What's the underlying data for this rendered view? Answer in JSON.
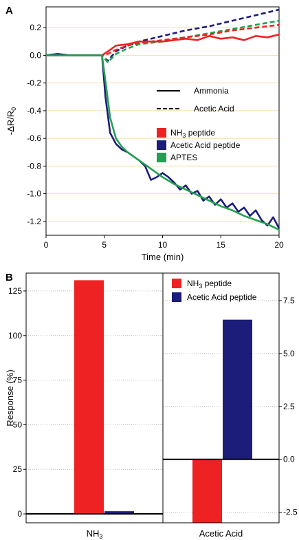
{
  "chart_data": [
    {
      "panel": "A",
      "type": "line",
      "xlabel": "Time (min)",
      "ylabel_parts": [
        "-ΔR/R",
        "0"
      ],
      "xlim": [
        0,
        20
      ],
      "ylim": [
        -1.3,
        0.35
      ],
      "xticks": [
        0,
        5,
        10,
        15,
        20
      ],
      "yticks": [
        0.2,
        0.0,
        -0.2,
        -0.4,
        -0.6,
        -0.8,
        -1.0,
        -1.2
      ],
      "ytick_labels": [
        "0.2",
        "0.0",
        "-0.2",
        "-0.4",
        "-0.6",
        "-0.8",
        "-1.0",
        "-1.2"
      ],
      "grid": true,
      "colors": {
        "nh3": "#ee2222",
        "acetic": "#1c1c7a",
        "aptes": "#22a050"
      },
      "style_legend": [
        {
          "label": "Ammonia",
          "dash": "solid"
        },
        {
          "label": "Acetic Acid",
          "dash": "dashed"
        }
      ],
      "color_legend": [
        {
          "label": "NH",
          "sub": "3",
          "label_after": " peptide",
          "color": "#ee2222"
        },
        {
          "label": "Acetic Acid peptide",
          "sub": "",
          "label_after": "",
          "color": "#1c1c7a"
        },
        {
          "label": "APTES",
          "sub": "",
          "label_after": "",
          "color": "#22a050"
        }
      ],
      "series": [
        {
          "gas": "Acetic Acid",
          "material": "Acetic Acid peptide",
          "dash": "dashed",
          "color": "#1c1c7a",
          "x": [
            0,
            2,
            4,
            4.8,
            5.3,
            6,
            7,
            8,
            10,
            12,
            14,
            16,
            18,
            20
          ],
          "y": [
            0,
            0,
            0,
            0,
            -0.04,
            0.03,
            0.07,
            0.1,
            0.14,
            0.18,
            0.21,
            0.25,
            0.29,
            0.33
          ]
        },
        {
          "gas": "Acetic Acid",
          "material": "APTES",
          "dash": "dashed",
          "color": "#22a050",
          "x": [
            0,
            2,
            4,
            4.8,
            5.3,
            6,
            7,
            8,
            10,
            12,
            14,
            16,
            18,
            20
          ],
          "y": [
            0,
            0,
            0,
            0,
            -0.05,
            0.01,
            0.05,
            0.08,
            0.1,
            0.13,
            0.16,
            0.19,
            0.22,
            0.25
          ]
        },
        {
          "gas": "Acetic Acid",
          "material": "NH3 peptide",
          "dash": "dashed",
          "color": "#ee2222",
          "x": [
            0,
            2,
            4,
            4.8,
            5.3,
            6,
            7,
            8,
            10,
            12,
            14,
            16,
            18,
            20
          ],
          "y": [
            0,
            0,
            0,
            0,
            0.01,
            0.04,
            0.07,
            0.09,
            0.11,
            0.13,
            0.15,
            0.18,
            0.2,
            0.22
          ]
        },
        {
          "gas": "Ammonia",
          "material": "NH3 peptide",
          "dash": "solid",
          "color": "#ee2222",
          "x": [
            0,
            2,
            4,
            4.8,
            5.5,
            6,
            7,
            8,
            9,
            10,
            11,
            12,
            13,
            14,
            15,
            16,
            17,
            18,
            19,
            20
          ],
          "y": [
            0,
            0,
            0,
            0,
            0.04,
            0.07,
            0.08,
            0.1,
            0.1,
            0.1,
            0.11,
            0.12,
            0.11,
            0.14,
            0.12,
            0.13,
            0.11,
            0.14,
            0.13,
            0.15
          ]
        },
        {
          "gas": "Ammonia",
          "material": "Acetic Acid peptide",
          "dash": "solid",
          "color": "#1c1c7a",
          "x": [
            0,
            1,
            2,
            3,
            4,
            4.8,
            5.1,
            5.5,
            6,
            6.5,
            7,
            7.5,
            8,
            8.5,
            9,
            9.5,
            10,
            10.5,
            11,
            11.5,
            12,
            12.5,
            13,
            13.5,
            14,
            14.5,
            15,
            15.5,
            16,
            16.5,
            17,
            17.5,
            18,
            18.5,
            19,
            19.5,
            20
          ],
          "y": [
            0,
            0.01,
            0,
            0,
            0,
            0,
            -0.3,
            -0.56,
            -0.64,
            -0.68,
            -0.7,
            -0.73,
            -0.76,
            -0.8,
            -0.9,
            -0.88,
            -0.85,
            -0.88,
            -0.92,
            -0.97,
            -0.94,
            -1.0,
            -0.98,
            -1.05,
            -1.02,
            -1.08,
            -1.04,
            -1.1,
            -1.07,
            -1.13,
            -1.1,
            -1.16,
            -1.12,
            -1.19,
            -1.23,
            -1.17,
            -1.25
          ]
        },
        {
          "gas": "Ammonia",
          "material": "APTES",
          "dash": "solid",
          "color": "#22a050",
          "x": [
            0,
            1,
            2,
            3,
            4,
            4.8,
            5.2,
            5.5,
            6,
            6.5,
            7,
            8,
            9,
            10,
            11,
            12,
            13,
            14,
            15,
            16,
            17,
            18,
            19,
            20
          ],
          "y": [
            0,
            0,
            0,
            0,
            0,
            0,
            -0.25,
            -0.45,
            -0.6,
            -0.66,
            -0.7,
            -0.76,
            -0.82,
            -0.88,
            -0.93,
            -0.97,
            -1.01,
            -1.05,
            -1.09,
            -1.12,
            -1.16,
            -1.19,
            -1.22,
            -1.26
          ]
        }
      ]
    },
    {
      "panel": "B",
      "type": "bar",
      "ylabel": "Response (%)",
      "grid": true,
      "legend": [
        {
          "label": "NH",
          "sub": "3",
          "label_after": " peptide",
          "color": "#ee2222"
        },
        {
          "label": "Acetic Acid peptide",
          "sub": "",
          "label_after": "",
          "color": "#1c1c7a"
        }
      ],
      "groups": [
        {
          "category": "NH",
          "category_sub": "3",
          "axis": "left",
          "ylim": [
            -5,
            135
          ],
          "yticks": [
            0,
            25,
            50,
            75,
            100,
            125
          ],
          "ytick_labels": [
            "0",
            "25",
            "50",
            "75",
            "100",
            "125"
          ],
          "values": [
            {
              "series": "NH3 peptide",
              "value": 131,
              "color": "#ee2222"
            },
            {
              "series": "Acetic Acid peptide",
              "value": 1.5,
              "color": "#1c1c7a"
            }
          ]
        },
        {
          "category": "Acetic Acid",
          "category_sub": "",
          "axis": "right",
          "ylim": [
            -3.0,
            8.8
          ],
          "yticks": [
            7.5,
            5.0,
            2.5,
            0.0,
            -2.5
          ],
          "ytick_labels": [
            "7.5",
            "5.0",
            "2.5",
            "0.0",
            "-2.5"
          ],
          "values": [
            {
              "series": "NH3 peptide",
              "value": -3.0,
              "color": "#ee2222"
            },
            {
              "series": "Acetic Acid peptide",
              "value": 6.6,
              "color": "#1c1c7a"
            }
          ]
        }
      ]
    }
  ]
}
